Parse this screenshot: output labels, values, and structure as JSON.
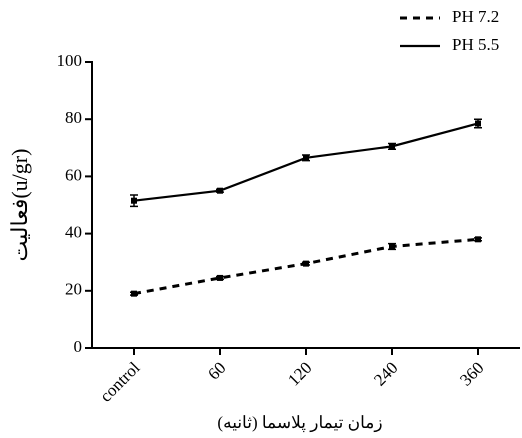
{
  "chart_data": {
    "type": "line",
    "y_label": "فعالیت(u/gr)",
    "x_label": "زمان تیمار پلاسما (ثانیه)",
    "categories": [
      "control",
      "60",
      "120",
      "240",
      "360"
    ],
    "series": [
      {
        "name": "PH 7.2",
        "color": "#000000",
        "line_style": "dashed",
        "values": [
          19,
          24.5,
          29.5,
          35.5,
          38
        ],
        "errors": [
          0.5,
          0.5,
          0.5,
          1,
          0.5
        ]
      },
      {
        "name": "PH 5.5",
        "color": "#000000",
        "line_style": "solid",
        "values": [
          51.5,
          55,
          66.5,
          70.5,
          78.5
        ],
        "errors": [
          2,
          0.5,
          1,
          1,
          1.5
        ]
      }
    ],
    "ylim": [
      0,
      100
    ],
    "yticks": [
      0,
      20,
      40,
      60,
      80,
      100
    ],
    "grid": false,
    "legend": "top-right"
  }
}
